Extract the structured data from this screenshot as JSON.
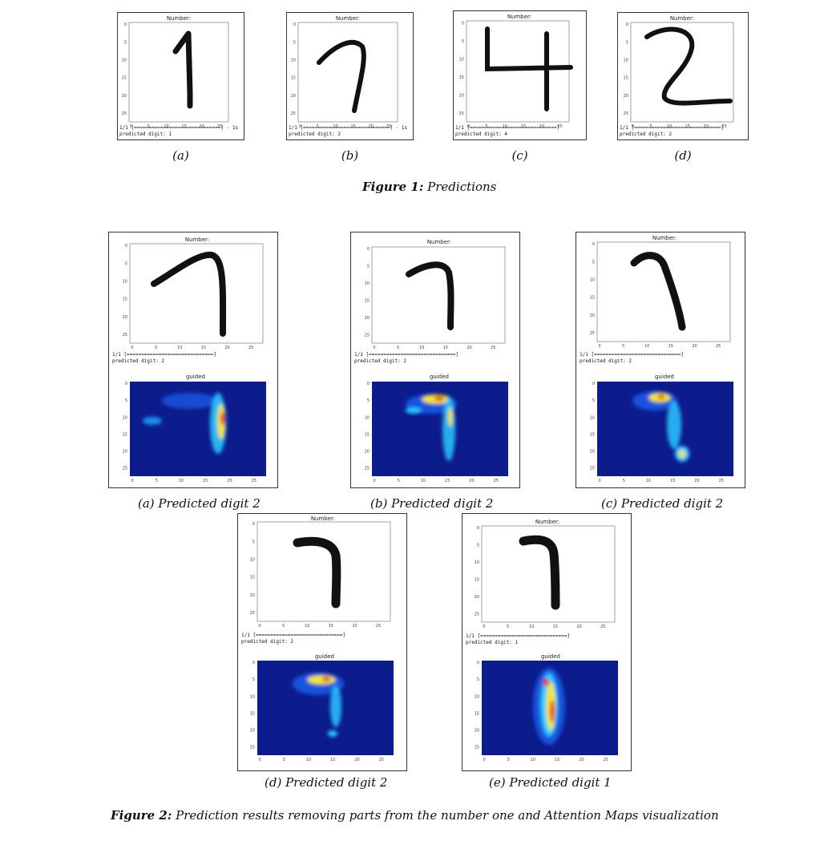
{
  "figure1": {
    "label": "Figure 1:",
    "text": "Predictions",
    "panels": [
      {
        "title": "Number:",
        "progress": "1/1 [==============================] - 1s",
        "prediction": "predicted digit: 1",
        "caption": "(a)"
      },
      {
        "title": "Number:",
        "progress": "1/1 [==============================] - 1s",
        "prediction": "predicted digit: 2",
        "caption": "(b)"
      },
      {
        "title": "Number:",
        "progress": "1/1 [==============================]",
        "prediction": "predicted digit: 4",
        "caption": "(c)"
      },
      {
        "title": "Number:",
        "progress": "1/1 [==============================]",
        "prediction": "predicted digit: 2",
        "caption": "(d)"
      }
    ]
  },
  "figure2": {
    "label": "Figure 2:",
    "text": "Prediction results removing parts from the number one and Attention Maps visualization",
    "map_title": "guided",
    "panels": [
      {
        "title": "Number:",
        "progress": "1/1 [==============================]",
        "prediction": "predicted digit: 2",
        "caption": "(a) Predicted digit 2"
      },
      {
        "title": "Number:",
        "progress": "1/1 [==============================]",
        "prediction": "predicted digit: 2",
        "caption": "(b) Predicted digit 2"
      },
      {
        "title": "Number:",
        "progress": "1/1 [==============================]",
        "prediction": "predicted digit: 2",
        "caption": "(c) Predicted digit 2"
      },
      {
        "title": "Number:",
        "progress": "1/1 [==============================]",
        "prediction": "predicted digit: 2",
        "caption": "(d) Predicted digit 2"
      },
      {
        "title": "Number:",
        "progress": "1/1 [==============================]",
        "prediction": "predicted digit: 1",
        "caption": "(e) Predicted digit 1"
      }
    ]
  },
  "axis_ticks": {
    "x": [
      "0",
      "5",
      "10",
      "15",
      "20",
      "25"
    ],
    "y": [
      "0",
      "5",
      "10",
      "15",
      "20",
      "25"
    ]
  },
  "colors": {
    "heatmap_bg": "#0c1c8c",
    "stroke": "#111111"
  }
}
